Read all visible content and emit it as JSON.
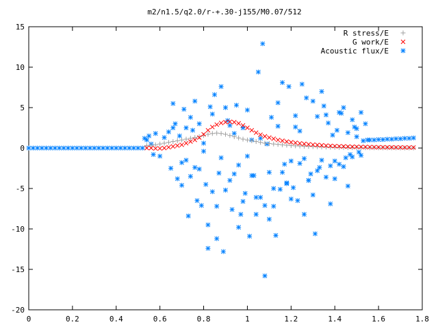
{
  "chart_data": {
    "type": "scatter",
    "title": "m2/n1.5/q2.0/r-+.30-j155/M0.07/512",
    "xlabel": "",
    "ylabel": "",
    "xlim": [
      0,
      1.8
    ],
    "ylim": [
      -20,
      15
    ],
    "x_ticks": [
      0,
      0.2,
      0.4,
      0.6,
      0.8,
      1,
      1.2,
      1.4,
      1.6,
      1.8
    ],
    "y_ticks": [
      -20,
      -15,
      -10,
      -5,
      0,
      5,
      10,
      15
    ],
    "x_tick_labels": [
      "0",
      "0.2",
      "0.4",
      "0.6",
      "0.8",
      "1",
      "1.2",
      "1.4",
      "1.6",
      "1.8"
    ],
    "y_tick_labels": [
      "-20",
      "-15",
      "-10",
      "-5",
      "0",
      "5",
      "10",
      "15"
    ],
    "grid": false,
    "legend_position": "top-right",
    "series": [
      {
        "name": "R stress/E",
        "marker": "plus",
        "color": "#a0a0a0",
        "x": [
          0.54,
          0.56,
          0.58,
          0.6,
          0.62,
          0.64,
          0.66,
          0.68,
          0.7,
          0.72,
          0.74,
          0.76,
          0.78,
          0.8,
          0.82,
          0.84,
          0.86,
          0.88,
          0.9,
          0.92,
          0.94,
          0.96,
          0.98,
          1.0,
          1.02,
          1.04,
          1.06,
          1.08,
          1.1,
          1.12,
          1.14,
          1.16,
          1.18,
          1.2,
          1.22,
          1.24,
          1.26,
          1.28,
          1.3,
          1.32,
          1.34,
          1.36,
          1.38,
          1.4,
          1.42,
          1.44,
          1.46,
          1.48,
          1.5,
          1.52,
          1.54,
          1.56,
          1.58,
          1.6,
          1.62,
          1.64,
          1.66,
          1.68,
          1.7,
          1.72,
          1.74,
          1.76
        ],
        "y": [
          0.3,
          0.35,
          0.4,
          0.5,
          0.6,
          0.7,
          0.8,
          0.9,
          1.0,
          1.1,
          1.2,
          1.3,
          1.4,
          1.55,
          1.7,
          1.8,
          1.85,
          1.8,
          1.7,
          1.55,
          1.4,
          1.25,
          1.1,
          1.0,
          0.9,
          0.8,
          0.7,
          0.6,
          0.55,
          0.5,
          0.45,
          0.4,
          0.35,
          0.3,
          0.27,
          0.25,
          0.22,
          0.2,
          0.18,
          0.16,
          0.14,
          0.12,
          0.1,
          0.1,
          0.08,
          0.07,
          0.06,
          0.05,
          0.05,
          0.04,
          0.04,
          0.03,
          0.03,
          0.03,
          0.02,
          0.02,
          0.02,
          0.02,
          0.01,
          0.01,
          0.01,
          0.01
        ]
      },
      {
        "name": "G work/E",
        "marker": "cross",
        "color": "#ff0000",
        "x": [
          0.54,
          0.56,
          0.58,
          0.6,
          0.62,
          0.64,
          0.66,
          0.68,
          0.7,
          0.72,
          0.74,
          0.76,
          0.78,
          0.8,
          0.82,
          0.84,
          0.86,
          0.88,
          0.9,
          0.92,
          0.94,
          0.96,
          0.98,
          1.0,
          1.02,
          1.04,
          1.06,
          1.08,
          1.1,
          1.12,
          1.14,
          1.16,
          1.18,
          1.2,
          1.22,
          1.24,
          1.26,
          1.28,
          1.3,
          1.32,
          1.34,
          1.36,
          1.38,
          1.4,
          1.42,
          1.44,
          1.46,
          1.48,
          1.5,
          1.52,
          1.54,
          1.56,
          1.58,
          1.6,
          1.62,
          1.64,
          1.66,
          1.68,
          1.7,
          1.72,
          1.74,
          1.76
        ],
        "y": [
          0.0,
          0.0,
          -0.05,
          -0.05,
          0.0,
          0.1,
          0.2,
          0.3,
          0.4,
          0.6,
          0.8,
          1.0,
          1.3,
          1.7,
          2.2,
          2.6,
          2.9,
          3.1,
          3.2,
          3.25,
          3.2,
          3.05,
          2.8,
          2.5,
          2.2,
          1.9,
          1.65,
          1.45,
          1.3,
          1.15,
          1.0,
          0.9,
          0.8,
          0.72,
          0.65,
          0.58,
          0.52,
          0.46,
          0.42,
          0.38,
          0.34,
          0.3,
          0.27,
          0.24,
          0.22,
          0.2,
          0.18,
          0.16,
          0.15,
          0.14,
          0.13,
          0.12,
          0.11,
          0.1,
          0.1,
          0.09,
          0.09,
          0.08,
          0.08,
          0.07,
          0.07,
          0.07
        ]
      },
      {
        "name": "Acoustic flux/E",
        "marker": "star",
        "color": "#0080ff",
        "x": [
          0.0,
          0.02,
          0.04,
          0.06,
          0.08,
          0.1,
          0.12,
          0.14,
          0.16,
          0.18,
          0.2,
          0.22,
          0.24,
          0.26,
          0.28,
          0.3,
          0.32,
          0.34,
          0.36,
          0.38,
          0.4,
          0.42,
          0.44,
          0.46,
          0.48,
          0.5,
          0.52,
          0.53,
          0.54,
          0.55,
          0.56,
          0.57,
          0.58,
          0.6,
          0.62,
          0.64,
          0.65,
          0.66,
          0.67,
          0.68,
          0.69,
          0.7,
          0.71,
          0.72,
          0.73,
          0.74,
          0.75,
          0.76,
          0.77,
          0.78,
          0.79,
          0.8,
          0.81,
          0.82,
          0.83,
          0.84,
          0.85,
          0.86,
          0.87,
          0.88,
          0.89,
          0.9,
          0.91,
          0.92,
          0.93,
          0.94,
          0.95,
          0.96,
          0.97,
          0.98,
          0.99,
          1.0,
          1.01,
          1.02,
          1.03,
          1.04,
          1.05,
          1.06,
          1.07,
          1.08,
          1.09,
          1.1,
          1.11,
          1.12,
          1.13,
          1.14,
          1.15,
          1.16,
          1.17,
          1.18,
          1.19,
          1.2,
          1.21,
          1.22,
          1.23,
          1.24,
          1.25,
          1.26,
          1.27,
          1.28,
          1.29,
          1.3,
          1.31,
          1.32,
          1.33,
          1.34,
          1.35,
          1.36,
          1.37,
          1.38,
          1.39,
          1.4,
          1.41,
          1.42,
          1.43,
          1.44,
          1.45,
          1.46,
          1.47,
          1.48,
          1.49,
          1.5,
          1.51,
          1.52,
          1.53,
          1.54,
          1.55,
          1.56,
          1.58,
          1.6,
          1.62,
          1.64,
          1.66,
          1.68,
          1.7,
          1.72,
          1.74,
          1.76,
          0.66,
          0.72,
          0.74,
          0.78,
          0.8,
          0.84,
          0.86,
          0.88,
          0.9,
          0.94,
          0.96,
          1.0,
          1.04,
          1.06,
          1.1,
          1.14,
          1.18,
          1.22,
          1.26,
          1.3,
          1.34,
          1.38,
          1.42,
          1.46,
          1.5,
          0.7,
          0.76,
          0.82,
          0.92,
          0.98,
          1.02,
          1.08,
          1.12,
          1.16,
          1.2,
          1.24,
          1.28,
          1.32,
          1.36,
          1.4,
          1.44,
          1.48,
          1.52
        ],
        "y": [
          0,
          0,
          0,
          0,
          0,
          0,
          0,
          0,
          0,
          0,
          0,
          0,
          0,
          0,
          0,
          0,
          0,
          0,
          0,
          0,
          0,
          0,
          0,
          0,
          0,
          0,
          0,
          1.2,
          1.0,
          1.5,
          0.5,
          -0.8,
          1.8,
          -1.0,
          1.3,
          2.0,
          -2.5,
          5.5,
          3.0,
          -3.8,
          1.5,
          -1.8,
          4.8,
          2.5,
          -8.4,
          -3.5,
          2.2,
          5.8,
          -6.5,
          3.0,
          -7.1,
          0.6,
          -4.5,
          -12.4,
          5.1,
          -5.4,
          6.6,
          -11.2,
          -3.1,
          7.6,
          -12.8,
          -5.2,
          3.4,
          -4.0,
          -7.6,
          1.8,
          5.3,
          -2.1,
          -8.2,
          2.5,
          -5.6,
          4.7,
          -10.9,
          1.0,
          -3.4,
          -8.2,
          9.4,
          -6.1,
          12.9,
          -7.1,
          0.5,
          -8.8,
          3.8,
          -5.0,
          -10.8,
          2.7,
          -5.1,
          8.1,
          -2.0,
          -4.3,
          7.6,
          -1.6,
          -4.9,
          4.0,
          -6.5,
          2.1,
          7.9,
          -1.3,
          6.2,
          -4.0,
          -3.2,
          5.8,
          -10.6,
          3.9,
          -2.4,
          -1.5,
          5.2,
          4.1,
          3.1,
          -6.9,
          1.6,
          -3.8,
          2.2,
          -2.0,
          4.3,
          5.0,
          -1.2,
          1.9,
          -0.8,
          3.5,
          2.6,
          1.4,
          -0.5,
          4.4,
          0.9,
          3.0,
          1.0,
          1.0,
          1.0,
          1.05,
          1.05,
          1.1,
          1.1,
          1.15,
          1.15,
          1.2,
          1.2,
          1.25,
          2.5,
          -1.5,
          3.8,
          -2.6,
          -0.4,
          4.2,
          -7.2,
          -1.2,
          5.0,
          -3.2,
          -9.8,
          -1.0,
          -6.1,
          1.2,
          -3.0,
          5.6,
          -4.4,
          2.6,
          -8.2,
          -5.8,
          7.0,
          -2.2,
          4.4,
          -4.7,
          2.4,
          -4.6,
          -2.4,
          -9.5,
          2.8,
          -6.6,
          -3.4,
          -15.8,
          -7.2,
          -3.0,
          -6.3,
          -1.9,
          -4.0,
          -2.8,
          -3.6,
          -1.6,
          -2.3,
          -1.1,
          -0.9
        ]
      }
    ]
  }
}
